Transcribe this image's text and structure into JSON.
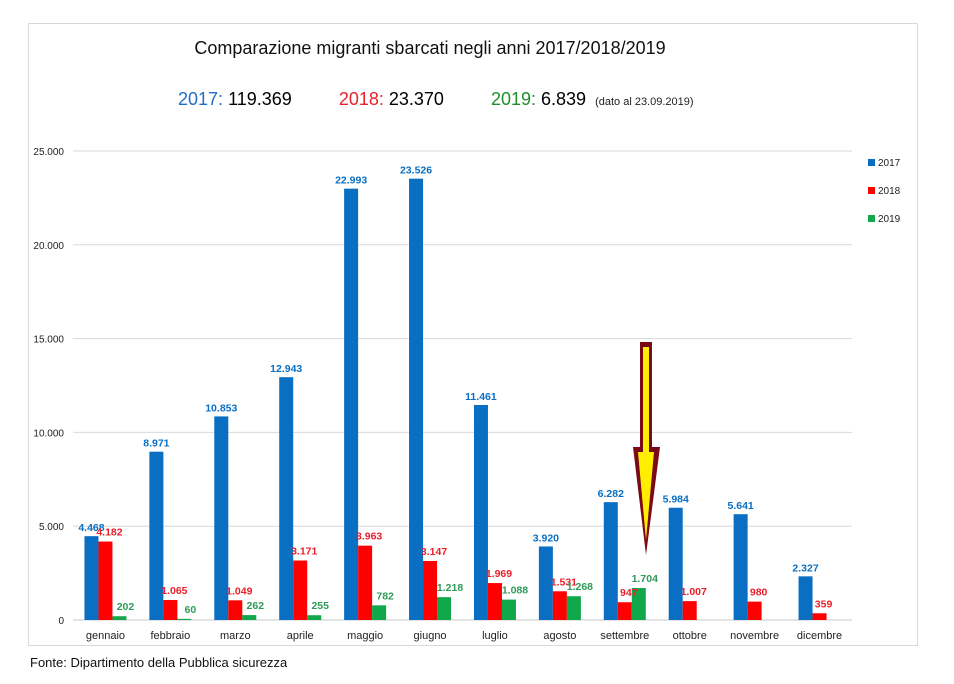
{
  "chart_data": {
    "type": "bar",
    "title": "Comparazione migranti sbarcati negli anni 2017/2018/2019",
    "xlabel": "",
    "ylabel": "",
    "ylim": [
      0,
      25000
    ],
    "yticks": [
      0,
      5000,
      10000,
      15000,
      20000,
      25000
    ],
    "ytick_labels": [
      "0",
      "5.000",
      "10.000",
      "15.000",
      "20.000",
      "25.000"
    ],
    "grid": true,
    "legend_position": "right",
    "categories": [
      "gennaio",
      "febbraio",
      "marzo",
      "aprile",
      "maggio",
      "giugno",
      "luglio",
      "agosto",
      "settembre",
      "ottobre",
      "novembre",
      "dicembre"
    ],
    "series": [
      {
        "name": "2017",
        "color": "#0a6fc2",
        "values": [
          4468,
          8971,
          10853,
          12943,
          22993,
          23526,
          11461,
          3920,
          6282,
          5984,
          5641,
          2327
        ],
        "labels": [
          "4.468",
          "8.971",
          "10.853",
          "12.943",
          "22.993",
          "23.526",
          "11.461",
          "3.920",
          "6.282",
          "5.984",
          "5.641",
          "2.327"
        ]
      },
      {
        "name": "2018",
        "color": "#ff0000",
        "label_color": "#e8202a",
        "values": [
          4182,
          1065,
          1049,
          3171,
          3963,
          3147,
          1969,
          1531,
          947,
          1007,
          980,
          359
        ],
        "labels": [
          "4.182",
          "1.065",
          "1.049",
          "3.171",
          "3.963",
          "3.147",
          "1.969",
          "1.531",
          "947",
          "1.007",
          "980",
          "359"
        ]
      },
      {
        "name": "2019",
        "color": "#10a84a",
        "label_color": "#2e9a58",
        "values": [
          202,
          60,
          262,
          255,
          782,
          1218,
          1088,
          1268,
          1704,
          null,
          null,
          null
        ],
        "labels": [
          "202",
          "60",
          "262",
          "255",
          "782",
          "1.218",
          "1.088",
          "1.268",
          "1.704",
          null,
          null,
          null
        ]
      }
    ],
    "annotation": {
      "type": "arrow",
      "description": "yellow arrow with dark red outline pointing down at settembre 2019 bar",
      "fill": "#ffee00",
      "outline": "#7a0a16"
    }
  },
  "totals": [
    {
      "year": "2017:",
      "value": "119.369",
      "color": "#1f6fc6"
    },
    {
      "year": "2018:",
      "value": "23.370",
      "color": "#e8202a"
    },
    {
      "year": "2019:",
      "value": "6.839",
      "color": "#1e8f2c"
    }
  ],
  "totals_note": "(dato al 23.09.2019)",
  "footer": "Fonte: Dipartimento della Pubblica sicurezza"
}
